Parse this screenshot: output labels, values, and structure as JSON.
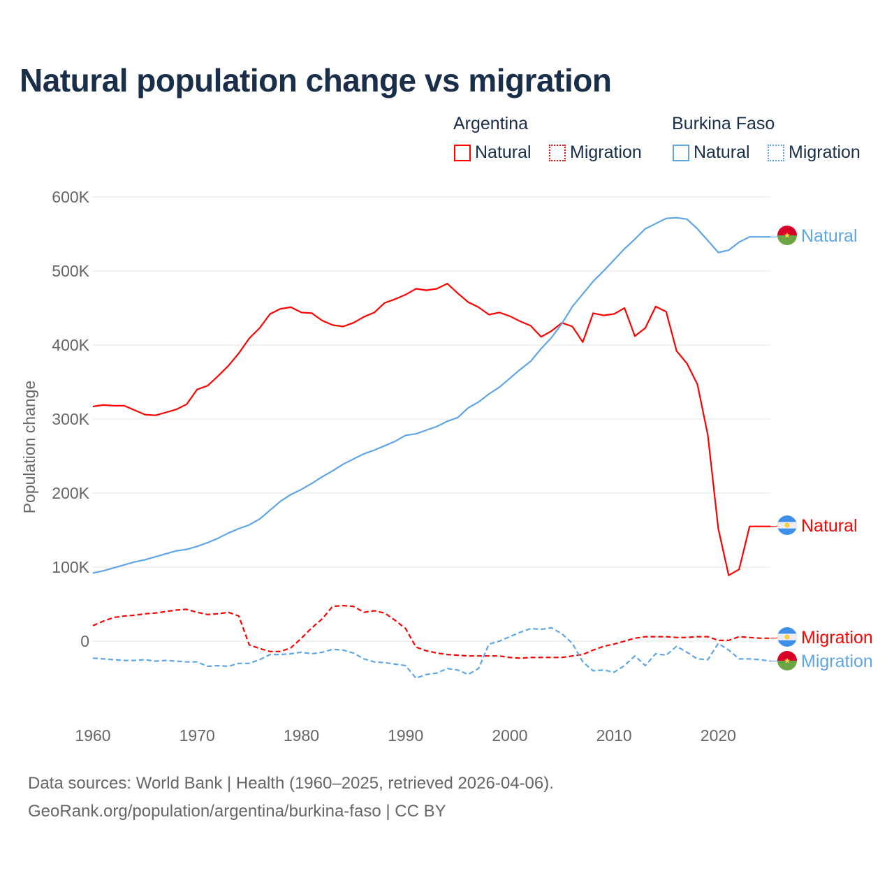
{
  "chart_data": {
    "type": "line",
    "title": "Natural population change vs migration",
    "ylabel": "Population change",
    "xlabel": "",
    "ylim": [
      -90000,
      600000
    ],
    "xlim": [
      1960,
      2025
    ],
    "y_ticks": [
      {
        "v": 0,
        "label": "0"
      },
      {
        "v": 100000,
        "label": "100K"
      },
      {
        "v": 200000,
        "label": "200K"
      },
      {
        "v": 300000,
        "label": "300K"
      },
      {
        "v": 400000,
        "label": "400K"
      },
      {
        "v": 500000,
        "label": "500K"
      },
      {
        "v": 600000,
        "label": "600K"
      }
    ],
    "x_ticks": [
      1960,
      1970,
      1980,
      1990,
      2000,
      2010,
      2020
    ],
    "grid": "horizontal",
    "legend": {
      "placement": "top-right",
      "groups": [
        {
          "country": "Argentina",
          "items": [
            {
              "label": "Natural",
              "style": "solid",
              "color": "#ff0000"
            },
            {
              "label": "Migration",
              "style": "dotted",
              "color": "#ff0000"
            }
          ]
        },
        {
          "country": "Burkina Faso",
          "items": [
            {
              "label": "Natural",
              "style": "solid",
              "color": "#5ea5e8"
            },
            {
              "label": "Migration",
              "style": "dotted",
              "color": "#5ea5e8"
            }
          ]
        }
      ]
    },
    "x_start": 1960,
    "series": [
      {
        "name": "Argentina Natural",
        "end_label": "Natural",
        "color": "#ff0000",
        "dash": false,
        "flag": "argentina",
        "values_k": [
          317,
          319,
          318,
          318,
          312,
          306,
          305,
          309,
          313,
          320,
          340,
          345,
          358,
          372,
          389,
          409,
          423,
          442,
          449,
          451,
          444,
          443,
          433,
          427,
          425,
          430,
          438,
          444,
          457,
          462,
          468,
          476,
          474,
          476,
          483,
          470,
          458,
          451,
          441,
          444,
          439,
          432,
          426,
          411,
          419,
          430,
          425,
          404,
          443,
          440,
          442,
          450,
          412,
          423,
          452,
          445,
          392,
          375,
          347,
          278,
          152,
          89,
          97,
          155,
          155,
          155
        ]
      },
      {
        "name": "Argentina Migration",
        "end_label": "Migration",
        "color": "#ff0000",
        "dash": true,
        "flag": "argentina",
        "values_k": [
          21,
          27,
          32,
          34,
          35,
          37,
          38,
          40,
          42,
          43,
          39,
          36,
          37,
          39,
          34,
          -5,
          -10,
          -14,
          -14,
          -9,
          4,
          18,
          30,
          47,
          48,
          47,
          39,
          41,
          38,
          28,
          17,
          -8,
          -13,
          -16,
          -18,
          -19,
          -20,
          -20,
          -20,
          -20,
          -22,
          -23,
          -22,
          -22,
          -22,
          -22,
          -20,
          -18,
          -12,
          -7,
          -4,
          0,
          4,
          6,
          6,
          6,
          5,
          5,
          6,
          6,
          1,
          1,
          6,
          5,
          4,
          4
        ]
      },
      {
        "name": "Burkina Faso Natural",
        "end_label": "Natural",
        "color": "#5ea5e8",
        "dash": false,
        "flag": "burkina",
        "values_k": [
          92,
          95,
          99,
          103,
          107,
          110,
          114,
          118,
          122,
          124,
          128,
          133,
          139,
          146,
          152,
          157,
          165,
          177,
          189,
          198,
          205,
          213,
          222,
          230,
          239,
          246,
          253,
          258,
          264,
          270,
          278,
          280,
          285,
          290,
          297,
          302,
          315,
          323,
          334,
          343,
          355,
          367,
          378,
          395,
          410,
          429,
          452,
          469,
          486,
          500,
          515,
          530,
          543,
          557,
          564,
          571,
          572,
          570,
          557,
          541,
          525,
          528,
          539,
          546,
          546,
          546
        ]
      },
      {
        "name": "Burkina Faso Migration",
        "end_label": "Migration",
        "color": "#5ea5e8",
        "dash": true,
        "flag": "burkina",
        "values_k": [
          -23,
          -24,
          -25,
          -26,
          -26,
          -25,
          -27,
          -26,
          -27,
          -28,
          -28,
          -34,
          -33,
          -34,
          -30,
          -30,
          -25,
          -18,
          -18,
          -17,
          -15,
          -17,
          -15,
          -11,
          -12,
          -16,
          -24,
          -28,
          -29,
          -31,
          -33,
          -50,
          -45,
          -43,
          -37,
          -39,
          -45,
          -37,
          -4,
          0,
          6,
          12,
          17,
          16,
          18,
          10,
          -3,
          -28,
          -40,
          -39,
          -42,
          -33,
          -20,
          -33,
          -17,
          -19,
          -7,
          -15,
          -24,
          -25,
          -3,
          -12,
          -24,
          -24,
          -25,
          -27
        ]
      }
    ]
  },
  "footer": {
    "line1": "Data sources: World Bank | Health (1960–2025, retrieved 2026-04-06).",
    "line2": "GeoRank.org/population/argentina/burkina-faso | CC BY"
  }
}
